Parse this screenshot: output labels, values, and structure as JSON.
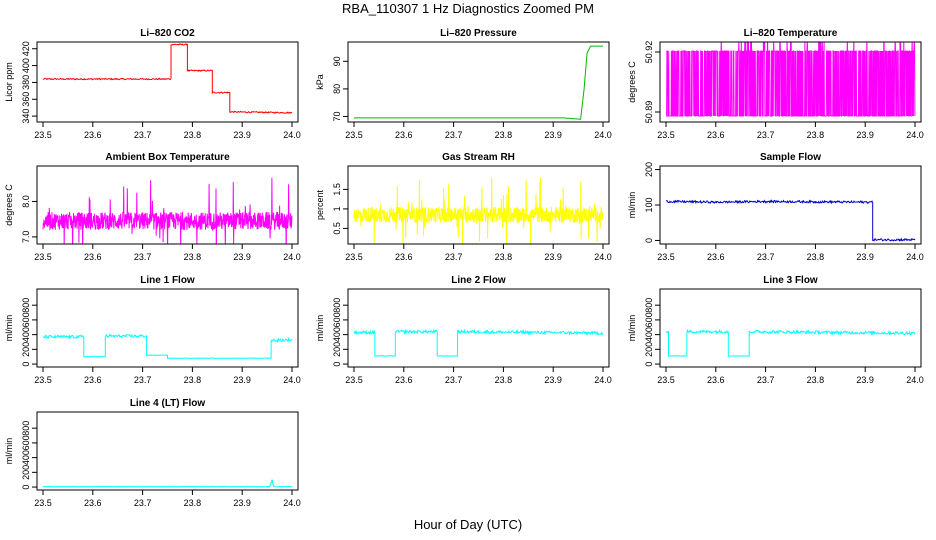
{
  "title": "RBA_110307  1 Hz Diagnostics Zoomed PM",
  "xlabel": "Hour of Day (UTC)",
  "chart_data": [
    {
      "type": "line",
      "title": "Li–820 CO2",
      "ylabel": "Licor ppm",
      "color": "#ff0000",
      "xlim": [
        23.5,
        24.0
      ],
      "ylim": [
        333,
        428
      ],
      "yticks": [
        340,
        360,
        380,
        400,
        420
      ],
      "xticks": [
        23.5,
        23.6,
        23.7,
        23.8,
        23.9,
        24.0
      ],
      "series": [
        {
          "x": [
            23.5,
            23.757,
            23.757,
            23.79,
            23.79,
            23.84,
            23.84,
            23.875,
            23.875,
            24.0
          ],
          "y": [
            384,
            384,
            425,
            425,
            394,
            394,
            368,
            368,
            345,
            344
          ]
        }
      ]
    },
    {
      "type": "line",
      "title": "Li–820 Pressure",
      "ylabel": "kPa",
      "color": "#00bb00",
      "xlim": [
        23.5,
        24.0
      ],
      "ylim": [
        68,
        97
      ],
      "yticks": [
        70,
        80,
        90
      ],
      "xticks": [
        23.5,
        23.6,
        23.7,
        23.8,
        23.9,
        24.0
      ],
      "series": [
        {
          "x": [
            23.5,
            23.92,
            23.955,
            23.962,
            23.968,
            23.975,
            24.0
          ],
          "y": [
            69.5,
            69.5,
            69.0,
            80,
            93,
            95.5,
            95.5
          ]
        }
      ]
    },
    {
      "type": "line",
      "title": "Li–820 Temperature",
      "ylabel": "degrees C",
      "color": "#ff00ff",
      "xlim": [
        23.5,
        24.0
      ],
      "ylim": [
        50.885,
        50.925
      ],
      "yticks": [
        50.89,
        50.92
      ],
      "xticks": [
        23.5,
        23.6,
        23.7,
        23.8,
        23.9,
        24.0
      ],
      "series": [
        {
          "x": [],
          "y": []
        }
      ]
    },
    {
      "type": "line",
      "title": "Ambient Box Temperature",
      "ylabel": "degrees C",
      "color": "#ff00ff",
      "xlim": [
        23.5,
        24.0
      ],
      "ylim": [
        6.8,
        9.0
      ],
      "yticks": [
        7.0,
        8.0
      ],
      "xticks": [
        23.5,
        23.6,
        23.7,
        23.8,
        23.9,
        24.0
      ],
      "series": [
        {
          "x": [],
          "y": []
        }
      ]
    },
    {
      "type": "line",
      "title": "Gas Stream RH",
      "ylabel": "percent",
      "color": "#ffff00",
      "xlim": [
        23.5,
        24.0
      ],
      "ylim": [
        0.1,
        2.1
      ],
      "yticks": [
        0.5,
        1.0,
        1.5
      ],
      "xticks": [
        23.5,
        23.6,
        23.7,
        23.8,
        23.9,
        24.0
      ],
      "series": [
        {
          "x": [],
          "y": []
        }
      ]
    },
    {
      "type": "line",
      "title": "Sample Flow",
      "ylabel": "ml/min",
      "color": "#0000cc",
      "xlim": [
        23.5,
        24.0
      ],
      "ylim": [
        -10,
        210
      ],
      "yticks": [
        0,
        100,
        200
      ],
      "xticks": [
        23.5,
        23.6,
        23.7,
        23.8,
        23.9,
        24.0
      ],
      "series": [
        {
          "x": [
            23.5,
            23.6,
            23.7,
            23.8,
            23.915,
            23.915,
            24.0
          ],
          "y": [
            110,
            108,
            110,
            109,
            108,
            2,
            2
          ]
        }
      ]
    },
    {
      "type": "line",
      "title": "Line 1 Flow",
      "ylabel": "ml/min",
      "color": "#00ffff",
      "xlim": [
        23.5,
        24.0
      ],
      "ylim": [
        -40,
        1020
      ],
      "yticks": [
        0,
        200,
        400,
        600,
        800
      ],
      "xticks": [
        23.5,
        23.6,
        23.7,
        23.8,
        23.9,
        24.0
      ],
      "series": [
        {
          "x": [
            23.5,
            23.582,
            23.582,
            23.625,
            23.625,
            23.708,
            23.708,
            23.75,
            23.75,
            23.958,
            23.958,
            24.0
          ],
          "y": [
            370,
            370,
            100,
            100,
            380,
            380,
            120,
            120,
            80,
            80,
            320,
            330
          ]
        }
      ]
    },
    {
      "type": "line",
      "title": "Line 2 Flow",
      "ylabel": "ml/min",
      "color": "#00ffff",
      "xlim": [
        23.5,
        24.0
      ],
      "ylim": [
        -40,
        1020
      ],
      "yticks": [
        0,
        200,
        400,
        600,
        800
      ],
      "xticks": [
        23.5,
        23.6,
        23.7,
        23.8,
        23.9,
        24.0
      ],
      "series": [
        {
          "x": [
            23.5,
            23.542,
            23.542,
            23.583,
            23.583,
            23.667,
            23.667,
            23.708,
            23.708,
            24.0
          ],
          "y": [
            430,
            430,
            110,
            110,
            440,
            440,
            110,
            110,
            440,
            420
          ]
        }
      ]
    },
    {
      "type": "line",
      "title": "Line 3 Flow",
      "ylabel": "ml/min",
      "color": "#00ffff",
      "xlim": [
        23.5,
        24.0
      ],
      "ylim": [
        -40,
        1020
      ],
      "yticks": [
        0,
        200,
        400,
        600,
        800
      ],
      "xticks": [
        23.5,
        23.6,
        23.7,
        23.8,
        23.9,
        24.0
      ],
      "series": [
        {
          "x": [
            23.5,
            23.505,
            23.505,
            23.542,
            23.542,
            23.625,
            23.625,
            23.667,
            23.667,
            24.0
          ],
          "y": [
            430,
            430,
            110,
            110,
            440,
            440,
            110,
            110,
            440,
            420
          ]
        }
      ]
    },
    {
      "type": "line",
      "title": "Line 4 (LT) Flow",
      "ylabel": "ml/min",
      "color": "#00ffff",
      "xlim": [
        23.5,
        24.0
      ],
      "ylim": [
        -40,
        1020
      ],
      "yticks": [
        0,
        200,
        400,
        600,
        800
      ],
      "xticks": [
        23.5,
        23.6,
        23.7,
        23.8,
        23.9,
        24.0
      ],
      "series": [
        {
          "x": [
            23.5,
            23.955,
            23.958,
            23.96,
            23.963,
            24.0
          ],
          "y": [
            5,
            5,
            60,
            100,
            5,
            5
          ]
        }
      ]
    }
  ]
}
